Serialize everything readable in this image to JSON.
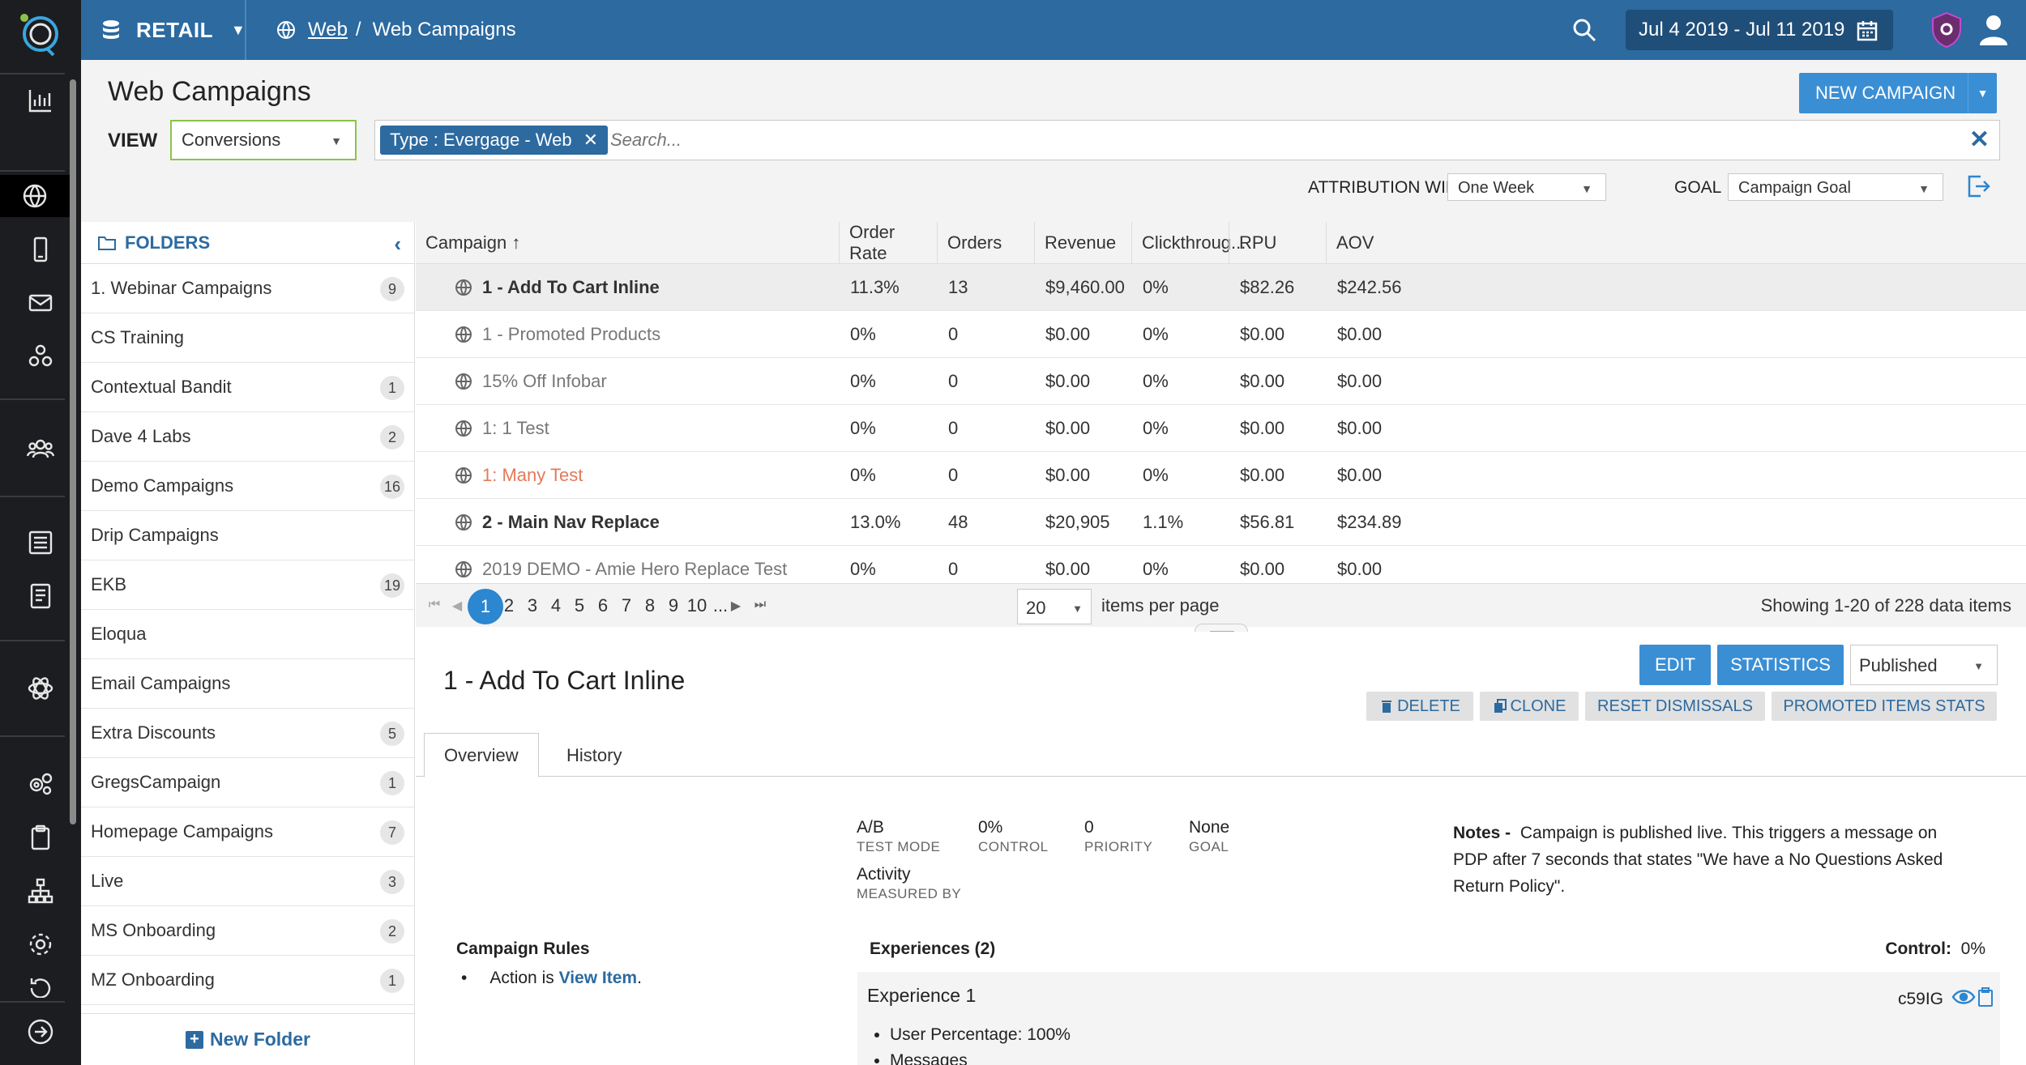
{
  "rail": {
    "icons": [
      "logo-icon",
      "bar-chart-icon",
      "globe-icon",
      "mobile-icon",
      "mail-icon",
      "network-icon",
      "users-icon",
      "list-icon",
      "document-icon",
      "atom-icon",
      "gears-icon",
      "clipboard-icon",
      "sitemap-icon",
      "settings-icon",
      "history-icon",
      "arrow-right-circle-icon"
    ]
  },
  "topbar": {
    "workspace": "RETAIL",
    "breadcrumb_link": "Web",
    "breadcrumb_separator": "/",
    "breadcrumb_current": "Web Campaigns",
    "date_range": "Jul 4 2019 - Jul 11 2019"
  },
  "header": {
    "title": "Web Campaigns",
    "view_label": "VIEW",
    "view_value": "Conversions",
    "filter_chip": "Type : Evergage - Web",
    "search_placeholder": "Search...",
    "new_campaign": "NEW CAMPAIGN",
    "attribution_label": "ATTRIBUTION WINDOW",
    "attribution_value": "One Week",
    "goal_label": "GOAL",
    "goal_value": "Campaign Goal"
  },
  "folders": {
    "title": "FOLDERS",
    "items": [
      {
        "name": "1. Webinar Campaigns",
        "count": "9"
      },
      {
        "name": "CS Training",
        "count": ""
      },
      {
        "name": "Contextual Bandit",
        "count": "1"
      },
      {
        "name": "Dave 4 Labs",
        "count": "2"
      },
      {
        "name": "Demo Campaigns",
        "count": "16"
      },
      {
        "name": "Drip Campaigns",
        "count": ""
      },
      {
        "name": "EKB",
        "count": "19"
      },
      {
        "name": "Eloqua",
        "count": ""
      },
      {
        "name": "Email Campaigns",
        "count": ""
      },
      {
        "name": "Extra Discounts",
        "count": "5"
      },
      {
        "name": "GregsCampaign",
        "count": "1"
      },
      {
        "name": "Homepage Campaigns",
        "count": "7"
      },
      {
        "name": "Live",
        "count": "3"
      },
      {
        "name": "MS Onboarding",
        "count": "2"
      },
      {
        "name": "MZ Onboarding",
        "count": "1"
      }
    ],
    "new_folder": "New Folder"
  },
  "table": {
    "columns": [
      "Campaign ↑",
      "Order Rate",
      "Orders",
      "Revenue",
      "Clickthroug...",
      "RPU",
      "AOV"
    ],
    "rows": [
      {
        "name": "1 - Add To Cart Inline",
        "style": "bold",
        "order_rate": "11.3%",
        "orders": "13",
        "revenue": "$9,460.00",
        "ctr": "0%",
        "rpu": "$82.26",
        "aov": "$242.56"
      },
      {
        "name": "1 - Promoted Products",
        "style": "gray",
        "order_rate": "0%",
        "orders": "0",
        "revenue": "$0.00",
        "ctr": "0%",
        "rpu": "$0.00",
        "aov": "$0.00"
      },
      {
        "name": "15% Off Infobar",
        "style": "gray",
        "order_rate": "0%",
        "orders": "0",
        "revenue": "$0.00",
        "ctr": "0%",
        "rpu": "$0.00",
        "aov": "$0.00"
      },
      {
        "name": "1: 1 Test",
        "style": "gray",
        "order_rate": "0%",
        "orders": "0",
        "revenue": "$0.00",
        "ctr": "0%",
        "rpu": "$0.00",
        "aov": "$0.00"
      },
      {
        "name": "1: Many Test",
        "style": "orange",
        "order_rate": "0%",
        "orders": "0",
        "revenue": "$0.00",
        "ctr": "0%",
        "rpu": "$0.00",
        "aov": "$0.00"
      },
      {
        "name": "2 - Main Nav Replace",
        "style": "bold",
        "order_rate": "13.0%",
        "orders": "48",
        "revenue": "$20,905",
        "ctr": "1.1%",
        "rpu": "$56.81",
        "aov": "$234.89"
      },
      {
        "name": "2019 DEMO - Amie Hero Replace Test",
        "style": "gray",
        "order_rate": "0%",
        "orders": "0",
        "revenue": "$0.00",
        "ctr": "0%",
        "rpu": "$0.00",
        "aov": "$0.00"
      }
    ]
  },
  "pager": {
    "pages": [
      "1",
      "2",
      "3",
      "4",
      "5",
      "6",
      "7",
      "8",
      "9",
      "10",
      "..."
    ],
    "current": "1",
    "per_page": "20",
    "per_page_label": "items per page",
    "summary": "Showing 1-20 of 228 data items"
  },
  "detail": {
    "title": "1 - Add To Cart Inline",
    "edit": "EDIT",
    "statistics": "STATISTICS",
    "status": "Published",
    "delete": "DELETE",
    "clone": "CLONE",
    "reset": "RESET DISMISSALS",
    "promoted": "PROMOTED ITEMS STATS",
    "tabs": [
      "Overview",
      "History"
    ],
    "stats": [
      {
        "value": "A/B",
        "label": "TEST MODE"
      },
      {
        "value": "0%",
        "label": "CONTROL"
      },
      {
        "value": "0",
        "label": "PRIORITY"
      },
      {
        "value": "None",
        "label": "GOAL"
      }
    ],
    "measured_value": "Activity",
    "measured_label": "MEASURED BY",
    "notes_label": "Notes -",
    "notes_text": "Campaign is published live. This triggers a message on PDP after 7 seconds that states \"We have a No Questions Asked Return Policy\".",
    "rules_title": "Campaign Rules",
    "rule_prefix": "Action is",
    "rule_value": "View Item",
    "rule_suffix": ".",
    "experiences_title": "Experiences (2)",
    "control_label": "Control:",
    "control_value": "0%",
    "experience_name": "Experience 1",
    "experience_id": "c59IG",
    "experience_items": [
      "User Percentage: 100%",
      "Messages"
    ]
  }
}
